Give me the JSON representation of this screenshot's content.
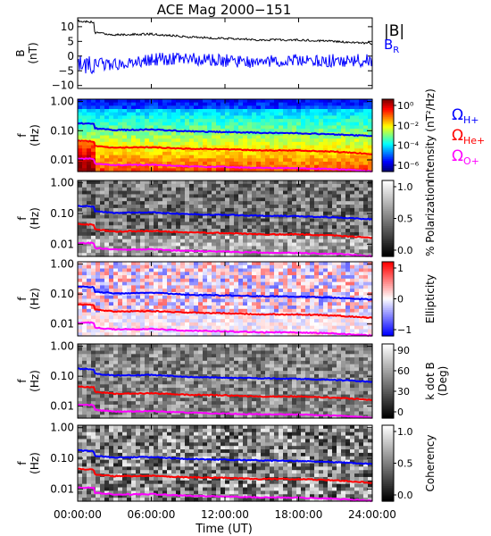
{
  "title": "ACE Mag 2000−151",
  "xlabel": "Time (UT)",
  "x_ticks": [
    "00:00:00",
    "06:00:00",
    "12:00:00",
    "18:00:00",
    "24:00:00"
  ],
  "colors": {
    "B_total": "#000000",
    "B_R": "#0000ff",
    "omega_H": "#0000ff",
    "omega_He": "#ff0000",
    "omega_O": "#ff00ff"
  },
  "chart_data": [
    {
      "type": "line",
      "panel": "magnetic_field",
      "ylabel_top": "B",
      "ylabel_unit": "(nT)",
      "x_range_hours": [
        0,
        24
      ],
      "ylim": [
        -11,
        13
      ],
      "y_ticks": [
        10,
        5,
        0,
        -5,
        -10
      ],
      "legend": {
        "total": "|B|",
        "radial_base": "B",
        "radial_sub": "R"
      },
      "series": [
        {
          "name": "|B|",
          "x": [
            0,
            1.3,
            1.4,
            3,
            6,
            9,
            12,
            15,
            18,
            21,
            24
          ],
          "values": [
            12,
            11.5,
            8,
            7.2,
            7.5,
            6.5,
            6,
            5.5,
            5.5,
            5,
            4.3
          ]
        },
        {
          "name": "B_R",
          "x": [
            0,
            1.3,
            1.4,
            3,
            6,
            9,
            12,
            15,
            18,
            21,
            24
          ],
          "values": [
            -3,
            -4,
            -2.5,
            -3,
            -1,
            -1,
            -1.5,
            -2,
            -1.5,
            -1.5,
            -1.5
          ]
        }
      ]
    },
    {
      "type": "heatmap",
      "panel": "power_spectrum",
      "ylabel_top": "f",
      "ylabel_unit": "(Hz)",
      "y_scale": "log",
      "ylim": [
        0.004,
        1.2
      ],
      "y_ticks": [
        "1.00",
        "0.10",
        "0.01"
      ],
      "colorbar": {
        "label": "Intensity (nT²/Hz)",
        "ticks": [
          "10⁰",
          "10⁻²",
          "10⁻⁴",
          "10⁻⁶"
        ]
      },
      "side_labels": [
        {
          "base": "Ω",
          "sub": "H+"
        },
        {
          "base": "Ω",
          "sub": "He+"
        },
        {
          "base": "Ω",
          "sub": "O+"
        }
      ]
    },
    {
      "type": "heatmap",
      "panel": "polarization",
      "ylabel_top": "f",
      "ylabel_unit": "(Hz)",
      "y_scale": "log",
      "y_ticks": [
        "1.00",
        "0.10",
        "0.01"
      ],
      "colorbar": {
        "label": "% Polarization",
        "ticks": [
          "1.0",
          "0.5",
          "0.0"
        ]
      }
    },
    {
      "type": "heatmap",
      "panel": "ellipticity",
      "ylabel_top": "f",
      "ylabel_unit": "(Hz)",
      "y_scale": "log",
      "y_ticks": [
        "1.00",
        "0.10",
        "0.01"
      ],
      "colorbar": {
        "label": "Ellipticity",
        "ticks": [
          "1",
          "0",
          "−1"
        ]
      }
    },
    {
      "type": "heatmap",
      "panel": "k_dot_b",
      "ylabel_top": "f",
      "ylabel_unit": "(Hz)",
      "y_scale": "log",
      "y_ticks": [
        "1.00",
        "0.10",
        "0.01"
      ],
      "colorbar": {
        "label": "k dot B",
        "label2": "(Deg)",
        "ticks": [
          "90",
          "60",
          "30",
          "0"
        ]
      }
    },
    {
      "type": "heatmap",
      "panel": "coherency",
      "ylabel_top": "f",
      "ylabel_unit": "(Hz)",
      "y_scale": "log",
      "y_ticks": [
        "1.00",
        "0.10",
        "0.01"
      ],
      "colorbar": {
        "label": "Coherency",
        "ticks": [
          "1.0",
          "0.5",
          "0.0"
        ]
      }
    }
  ],
  "gyrofrequency_curves_hz": {
    "x": [
      0,
      1.3,
      1.4,
      3,
      6,
      9,
      12,
      15,
      18,
      21,
      24
    ],
    "H+": [
      0.18,
      0.17,
      0.12,
      0.105,
      0.11,
      0.095,
      0.09,
      0.085,
      0.082,
      0.075,
      0.065
    ],
    "He+": [
      0.045,
      0.043,
      0.03,
      0.026,
      0.027,
      0.024,
      0.023,
      0.021,
      0.021,
      0.019,
      0.016
    ],
    "O+": [
      0.011,
      0.011,
      0.0075,
      0.0066,
      0.0068,
      0.006,
      0.0057,
      0.0053,
      0.0052,
      0.0048,
      0.0041
    ]
  }
}
